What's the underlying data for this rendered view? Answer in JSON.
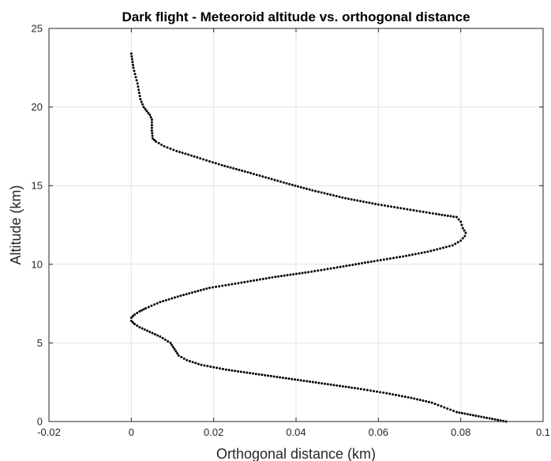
{
  "chart_data": {
    "type": "scatter",
    "title": "Dark flight - Meteoroid altitude vs. orthogonal distance",
    "xlabel": "Orthogonal distance (km)",
    "ylabel": "Altitude (km)",
    "xlim": [
      -0.02,
      0.1
    ],
    "ylim": [
      0,
      25
    ],
    "xticks": [
      -0.02,
      0,
      0.02,
      0.04,
      0.06,
      0.08,
      0.1
    ],
    "xtick_labels": [
      "-0.02",
      "0",
      "0.02",
      "0.04",
      "0.06",
      "0.08",
      "0.1"
    ],
    "yticks": [
      0,
      5,
      10,
      15,
      20,
      25
    ],
    "ytick_labels": [
      "0",
      "5",
      "10",
      "15",
      "20",
      "25"
    ],
    "grid": true,
    "legend": "none",
    "marker_color": "#000000",
    "series": [
      {
        "altitude_km": [
          23.4,
          22.5,
          21.5,
          20.5,
          20.0,
          19.5,
          19.2,
          18.5,
          18.0,
          17.8,
          17.5,
          17.2,
          16.8,
          16.3,
          15.8,
          15.2,
          14.7,
          14.2,
          13.8,
          13.5,
          13.2,
          13.0,
          12.7,
          12.3,
          12.0,
          11.8,
          11.5,
          11.2,
          10.8,
          10.5,
          10.2,
          9.8,
          9.5,
          9.2,
          8.8,
          8.5,
          8.0,
          7.6,
          7.2,
          7.0,
          6.8,
          6.6,
          6.4,
          6.2,
          6.0,
          5.7,
          5.4,
          5.0,
          4.6,
          4.2,
          3.9,
          3.6,
          3.3,
          3.0,
          2.7,
          2.4,
          2.1,
          1.8,
          1.5,
          1.2,
          0.9,
          0.6,
          0.4,
          0.2,
          0.0
        ],
        "distance_km": [
          0.0,
          0.0005,
          0.0015,
          0.0022,
          0.003,
          0.0045,
          0.005,
          0.005,
          0.0052,
          0.006,
          0.008,
          0.011,
          0.016,
          0.022,
          0.029,
          0.037,
          0.044,
          0.052,
          0.06,
          0.067,
          0.074,
          0.079,
          0.08,
          0.0805,
          0.0812,
          0.081,
          0.08,
          0.078,
          0.072,
          0.066,
          0.059,
          0.05,
          0.043,
          0.035,
          0.026,
          0.019,
          0.012,
          0.007,
          0.0035,
          0.002,
          0.0008,
          0.0,
          0.0,
          0.0008,
          0.002,
          0.0045,
          0.007,
          0.0095,
          0.0105,
          0.0115,
          0.0135,
          0.017,
          0.023,
          0.031,
          0.039,
          0.047,
          0.055,
          0.062,
          0.068,
          0.073,
          0.076,
          0.079,
          0.083,
          0.087,
          0.091
        ]
      }
    ]
  }
}
